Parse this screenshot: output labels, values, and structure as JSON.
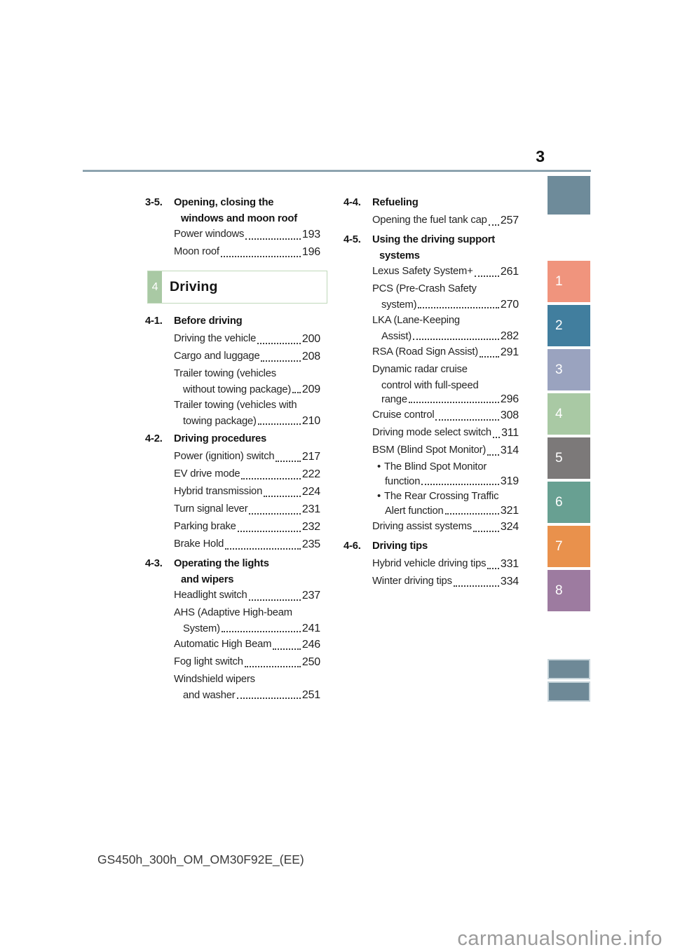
{
  "page": {
    "number": "3",
    "footer_code": "GS450h_300h_OM_OM30F92E_(EE)",
    "watermark": "carmanualsonline.info"
  },
  "glyphs": {
    "bullet": "•"
  },
  "rule_color": "#7b95a3",
  "chapter_box": {
    "number": "4",
    "label": "Driving",
    "accent_color": "#a9c9a4"
  },
  "toc": {
    "left": [
      {
        "id": "3-5.",
        "title_lines": [
          "Opening, closing the",
          "windows and moon roof"
        ],
        "items": [
          {
            "lines": [
              "Power windows"
            ],
            "page": "193"
          },
          {
            "lines": [
              "Moon roof"
            ],
            "page": "196"
          }
        ],
        "chapter_box_after": true
      },
      {
        "id": "4-1.",
        "title_lines": [
          "Before driving"
        ],
        "items": [
          {
            "lines": [
              "Driving the vehicle"
            ],
            "page": "200"
          },
          {
            "lines": [
              "Cargo and luggage"
            ],
            "page": "208"
          },
          {
            "lines": [
              "Trailer towing (vehicles",
              "without towing package)"
            ],
            "page": "209"
          },
          {
            "lines": [
              "Trailer towing (vehicles with",
              "towing package)"
            ],
            "page": "210"
          }
        ]
      },
      {
        "id": "4-2.",
        "title_lines": [
          "Driving procedures"
        ],
        "items": [
          {
            "lines": [
              "Power (ignition) switch"
            ],
            "page": "217"
          },
          {
            "lines": [
              "EV drive mode"
            ],
            "page": "222"
          },
          {
            "lines": [
              "Hybrid transmission"
            ],
            "page": "224"
          },
          {
            "lines": [
              "Turn signal lever"
            ],
            "page": "231"
          },
          {
            "lines": [
              "Parking brake"
            ],
            "page": "232"
          },
          {
            "lines": [
              "Brake Hold"
            ],
            "page": "235"
          }
        ]
      },
      {
        "id": "4-3.",
        "title_lines": [
          "Operating the lights",
          "and wipers"
        ],
        "items": [
          {
            "lines": [
              "Headlight switch"
            ],
            "page": "237"
          },
          {
            "lines": [
              "AHS (Adaptive High-beam",
              "System)"
            ],
            "page": "241"
          },
          {
            "lines": [
              "Automatic High Beam"
            ],
            "page": "246"
          },
          {
            "lines": [
              "Fog light switch"
            ],
            "page": "250"
          },
          {
            "lines": [
              "Windshield wipers",
              "and washer"
            ],
            "page": "251"
          }
        ]
      }
    ],
    "right": [
      {
        "id": "4-4.",
        "title_lines": [
          "Refueling"
        ],
        "items": [
          {
            "lines": [
              "Opening the fuel tank cap"
            ],
            "page": "257"
          }
        ]
      },
      {
        "id": "4-5.",
        "title_lines": [
          "Using the driving support",
          "systems"
        ],
        "items": [
          {
            "lines": [
              "Lexus Safety System+"
            ],
            "page": "261"
          },
          {
            "lines": [
              "PCS (Pre-Crash Safety",
              "system)"
            ],
            "page": "270"
          },
          {
            "lines": [
              "LKA (Lane-Keeping",
              "Assist)"
            ],
            "page": "282"
          },
          {
            "lines": [
              "RSA (Road Sign Assist)"
            ],
            "page": "291"
          },
          {
            "lines": [
              "Dynamic radar cruise",
              "control with full-speed",
              "range"
            ],
            "page": "296"
          },
          {
            "lines": [
              "Cruise control"
            ],
            "page": "308"
          },
          {
            "lines": [
              "Driving mode select switch"
            ],
            "page": "311"
          },
          {
            "lines": [
              "BSM (Blind Spot Monitor)"
            ],
            "page": "314"
          },
          {
            "bullet": true,
            "lines": [
              "The Blind Spot Monitor",
              "function"
            ],
            "page": "319"
          },
          {
            "bullet": true,
            "lines": [
              "The Rear Crossing Traffic",
              "Alert function"
            ],
            "page": "321"
          },
          {
            "lines": [
              "Driving assist systems"
            ],
            "page": "324"
          }
        ]
      },
      {
        "id": "4-6.",
        "title_lines": [
          "Driving tips"
        ],
        "items": [
          {
            "lines": [
              "Hybrid vehicle driving tips"
            ],
            "page": "331"
          },
          {
            "lines": [
              "Winter driving tips"
            ],
            "page": "334"
          }
        ]
      }
    ]
  },
  "tab_rail": {
    "top_marker_color": "#6e8b9a",
    "tabs": [
      {
        "label": "1",
        "color": "#f0947d"
      },
      {
        "label": "2",
        "color": "#417e9e"
      },
      {
        "label": "3",
        "color": "#9aa3bf"
      },
      {
        "label": "4",
        "color": "#a9c9a4"
      },
      {
        "label": "5",
        "color": "#7c7979"
      },
      {
        "label": "6",
        "color": "#68a092"
      },
      {
        "label": "7",
        "color": "#e9914c"
      },
      {
        "label": "8",
        "color": "#9d7ba0"
      }
    ],
    "bottom_marker_colors": [
      "#6e8997",
      "#6e8997"
    ]
  }
}
